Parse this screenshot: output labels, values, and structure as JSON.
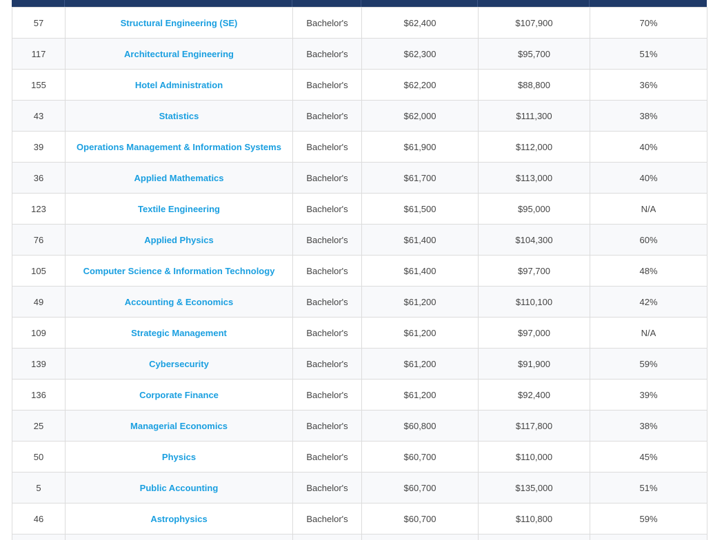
{
  "rows": [
    {
      "rank": "57",
      "major": "Structural Engineering (SE)",
      "degree": "Bachelor's",
      "early": "$62,400",
      "mid": "$107,900",
      "meaning": "70%"
    },
    {
      "rank": "117",
      "major": "Architectural Engineering",
      "degree": "Bachelor's",
      "early": "$62,300",
      "mid": "$95,700",
      "meaning": "51%"
    },
    {
      "rank": "155",
      "major": "Hotel Administration",
      "degree": "Bachelor's",
      "early": "$62,200",
      "mid": "$88,800",
      "meaning": "36%"
    },
    {
      "rank": "43",
      "major": "Statistics",
      "degree": "Bachelor's",
      "early": "$62,000",
      "mid": "$111,300",
      "meaning": "38%"
    },
    {
      "rank": "39",
      "major": "Operations Management & Information Systems",
      "degree": "Bachelor's",
      "early": "$61,900",
      "mid": "$112,000",
      "meaning": "40%"
    },
    {
      "rank": "36",
      "major": "Applied Mathematics",
      "degree": "Bachelor's",
      "early": "$61,700",
      "mid": "$113,000",
      "meaning": "40%"
    },
    {
      "rank": "123",
      "major": "Textile Engineering",
      "degree": "Bachelor's",
      "early": "$61,500",
      "mid": "$95,000",
      "meaning": "N/A"
    },
    {
      "rank": "76",
      "major": "Applied Physics",
      "degree": "Bachelor's",
      "early": "$61,400",
      "mid": "$104,300",
      "meaning": "60%"
    },
    {
      "rank": "105",
      "major": "Computer Science & Information Technology",
      "degree": "Bachelor's",
      "early": "$61,400",
      "mid": "$97,700",
      "meaning": "48%"
    },
    {
      "rank": "49",
      "major": "Accounting & Economics",
      "degree": "Bachelor's",
      "early": "$61,200",
      "mid": "$110,100",
      "meaning": "42%"
    },
    {
      "rank": "109",
      "major": "Strategic Management",
      "degree": "Bachelor's",
      "early": "$61,200",
      "mid": "$97,000",
      "meaning": "N/A"
    },
    {
      "rank": "139",
      "major": "Cybersecurity",
      "degree": "Bachelor's",
      "early": "$61,200",
      "mid": "$91,900",
      "meaning": "59%"
    },
    {
      "rank": "136",
      "major": "Corporate Finance",
      "degree": "Bachelor's",
      "early": "$61,200",
      "mid": "$92,400",
      "meaning": "39%"
    },
    {
      "rank": "25",
      "major": "Managerial Economics",
      "degree": "Bachelor's",
      "early": "$60,800",
      "mid": "$117,800",
      "meaning": "38%"
    },
    {
      "rank": "50",
      "major": "Physics",
      "degree": "Bachelor's",
      "early": "$60,700",
      "mid": "$110,000",
      "meaning": "45%"
    },
    {
      "rank": "5",
      "major": "Public Accounting",
      "degree": "Bachelor's",
      "early": "$60,700",
      "mid": "$135,000",
      "meaning": "51%"
    },
    {
      "rank": "46",
      "major": "Astrophysics",
      "degree": "Bachelor's",
      "early": "$60,700",
      "mid": "$110,800",
      "meaning": "59%"
    }
  ]
}
